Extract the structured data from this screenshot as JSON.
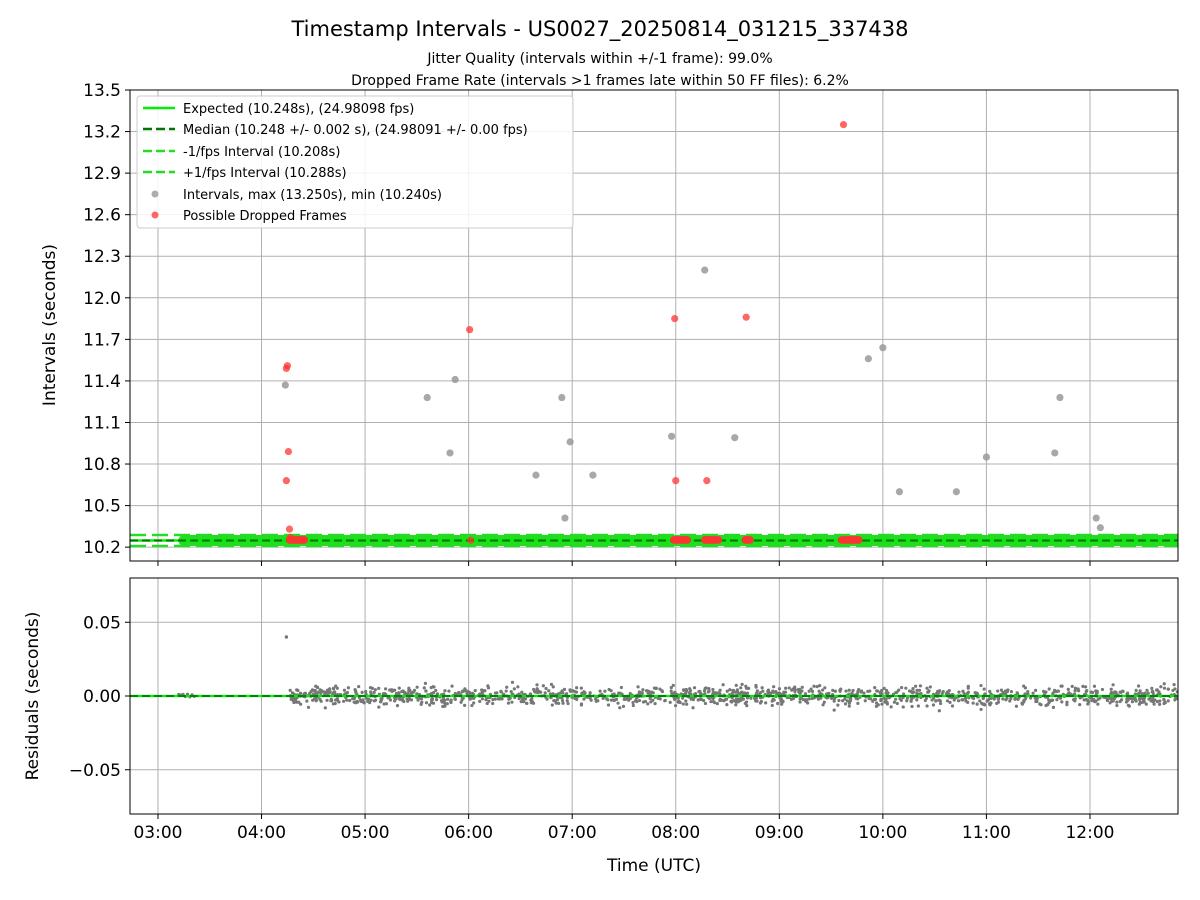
{
  "chart_data": [
    {
      "type": "scatter",
      "title": "Timestamp Intervals - US0027_20250814_031215_337438",
      "subtitle_lines": [
        "Jitter Quality (intervals within +/-1 frame): 99.0%",
        "Dropped Frame Rate (intervals >1 frames late within 50 FF files): 6.2%"
      ],
      "xlabel": "",
      "ylabel": "Intervals (seconds)",
      "x_unit": "hours UTC",
      "xlim": [
        2.73,
        12.85
      ],
      "ylim": [
        10.1,
        13.5
      ],
      "yticks": [
        10.2,
        10.5,
        10.8,
        11.1,
        11.4,
        11.7,
        12.0,
        12.3,
        12.6,
        12.9,
        13.2,
        13.5
      ],
      "ytick_labels": [
        "10.2",
        "10.5",
        "10.8",
        "11.1",
        "11.4",
        "11.7",
        "12.0",
        "12.3",
        "12.6",
        "12.9",
        "13.2",
        "13.5"
      ],
      "grid": true,
      "legend_position": "upper-left",
      "legend": [
        "Expected (10.248s), (24.98098 fps)",
        "Median (10.248 +/- 0.002 s), (24.98091 +/- 0.00 fps)",
        "-1/fps Interval (10.208s)",
        "+1/fps Interval (10.288s)",
        "Intervals, max (13.250s), min (10.240s)",
        "Possible Dropped Frames"
      ],
      "lines": {
        "expected": 10.248,
        "median": 10.248,
        "minus_one_fps": 10.208,
        "plus_one_fps": 10.288
      },
      "baseline_range": [
        3.25,
        12.85
      ],
      "intervals_gray": [
        {
          "x": 4.23,
          "y": 11.37
        },
        {
          "x": 5.6,
          "y": 11.28
        },
        {
          "x": 5.82,
          "y": 10.88
        },
        {
          "x": 5.87,
          "y": 11.41
        },
        {
          "x": 6.65,
          "y": 10.72
        },
        {
          "x": 6.9,
          "y": 11.28
        },
        {
          "x": 6.93,
          "y": 10.41
        },
        {
          "x": 6.98,
          "y": 10.96
        },
        {
          "x": 7.2,
          "y": 10.72
        },
        {
          "x": 7.96,
          "y": 11.0
        },
        {
          "x": 8.28,
          "y": 12.2
        },
        {
          "x": 8.57,
          "y": 10.99
        },
        {
          "x": 9.86,
          "y": 11.56
        },
        {
          "x": 10.0,
          "y": 11.64
        },
        {
          "x": 10.16,
          "y": 10.6
        },
        {
          "x": 10.71,
          "y": 10.6
        },
        {
          "x": 11.0,
          "y": 10.85
        },
        {
          "x": 11.66,
          "y": 10.88
        },
        {
          "x": 11.71,
          "y": 11.28
        },
        {
          "x": 12.06,
          "y": 10.41
        },
        {
          "x": 12.1,
          "y": 10.34
        }
      ],
      "dropped_frames": [
        {
          "x": 4.24,
          "y": 11.49
        },
        {
          "x": 4.25,
          "y": 11.51
        },
        {
          "x": 4.26,
          "y": 10.89
        },
        {
          "x": 4.24,
          "y": 10.68
        },
        {
          "x": 4.27,
          "y": 10.33
        },
        {
          "x": 4.28,
          "y": 10.27
        },
        {
          "x": 6.01,
          "y": 11.77
        },
        {
          "x": 6.02,
          "y": 10.25
        },
        {
          "x": 7.99,
          "y": 11.85
        },
        {
          "x": 8.0,
          "y": 10.68
        },
        {
          "x": 8.3,
          "y": 10.68
        },
        {
          "x": 8.68,
          "y": 11.86
        },
        {
          "x": 9.62,
          "y": 13.25
        }
      ],
      "dropped_clusters": [
        [
          4.27,
          4.42
        ],
        [
          7.98,
          8.12
        ],
        [
          8.28,
          8.42
        ],
        [
          8.67,
          8.73
        ],
        [
          9.6,
          9.77
        ]
      ]
    },
    {
      "type": "scatter",
      "xlabel": "Time (UTC)",
      "ylabel": "Residuals (seconds)",
      "xlim": [
        2.73,
        12.85
      ],
      "ylim": [
        -0.08,
        0.08
      ],
      "yticks": [
        -0.05,
        0.0,
        0.05
      ],
      "ytick_labels": [
        "−0.05",
        "0.00",
        "0.05"
      ],
      "xticks": [
        3,
        4,
        5,
        6,
        7,
        8,
        9,
        10,
        11,
        12
      ],
      "xtick_labels": [
        "03:00",
        "04:00",
        "05:00",
        "06:00",
        "07:00",
        "08:00",
        "09:00",
        "10:00",
        "11:00",
        "12:00"
      ],
      "grid": true,
      "residual_outliers": [
        {
          "x": 4.24,
          "y": 0.04
        }
      ],
      "residual_band": {
        "x_start": 4.27,
        "x_end": 12.85,
        "spread": 0.007,
        "count": 1400
      },
      "early_residuals": {
        "x_start": 3.2,
        "x_end": 3.35,
        "spread": 0.001,
        "count": 8
      }
    }
  ],
  "colors": {
    "expected": "#00ee00",
    "median": "#007700",
    "fps_band": "#22dd22",
    "intervals": "#999999",
    "dropped": "#ff3333",
    "residuals": "#777777",
    "grid": "#b0b0b0"
  }
}
